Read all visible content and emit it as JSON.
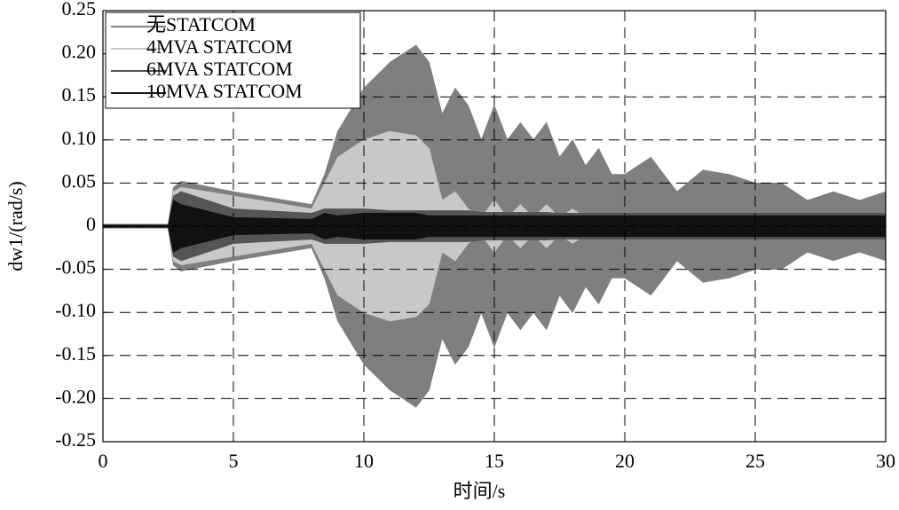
{
  "chart_data": {
    "type": "band",
    "xlabel": "时间/s",
    "ylabel": "dw1/(rad/s)",
    "x": [
      0,
      2.5,
      2.7,
      3,
      5,
      8,
      8.5,
      9,
      10,
      11,
      12,
      12.5,
      13,
      13.5,
      14,
      14.5,
      15,
      15.5,
      16,
      16.5,
      17,
      17.5,
      18,
      18.5,
      19,
      19.5,
      20,
      21,
      22,
      23,
      24,
      25,
      26,
      27,
      28,
      29,
      30
    ],
    "series": [
      {
        "name": "无STATCOM",
        "color": "#7f7f7f",
        "values": [
          0.002,
          0.002,
          0.045,
          0.052,
          0.04,
          0.025,
          0.06,
          0.11,
          0.16,
          0.19,
          0.21,
          0.19,
          0.13,
          0.16,
          0.14,
          0.1,
          0.14,
          0.1,
          0.12,
          0.1,
          0.12,
          0.08,
          0.1,
          0.07,
          0.09,
          0.06,
          0.06,
          0.08,
          0.04,
          0.065,
          0.06,
          0.05,
          0.05,
          0.03,
          0.04,
          0.03,
          0.04
        ],
        "lower": [
          -0.002,
          -0.002,
          -0.045,
          -0.052,
          -0.04,
          -0.025,
          -0.06,
          -0.11,
          -0.16,
          -0.19,
          -0.21,
          -0.19,
          -0.13,
          -0.16,
          -0.14,
          -0.1,
          -0.14,
          -0.1,
          -0.12,
          -0.1,
          -0.12,
          -0.08,
          -0.1,
          -0.07,
          -0.09,
          -0.06,
          -0.06,
          -0.08,
          -0.04,
          -0.065,
          -0.06,
          -0.05,
          -0.05,
          -0.03,
          -0.04,
          -0.03,
          -0.04
        ]
      },
      {
        "name": "4MVA STATCOM",
        "color": "#c8c8c8",
        "values": [
          0.002,
          0.002,
          0.04,
          0.045,
          0.035,
          0.02,
          0.05,
          0.08,
          0.1,
          0.11,
          0.105,
          0.09,
          0.03,
          0.04,
          0.02,
          0.01,
          0.03,
          0.01,
          0.025,
          0.01,
          0.025,
          0.01,
          0.02,
          0.01,
          0.015,
          0.012,
          0.012,
          0.012,
          0.012,
          0.012,
          0.012,
          0.012,
          0.012,
          0.012,
          0.012,
          0.012,
          0.012
        ],
        "lower": [
          -0.002,
          -0.002,
          -0.04,
          -0.045,
          -0.035,
          -0.02,
          -0.05,
          -0.08,
          -0.1,
          -0.11,
          -0.105,
          -0.09,
          -0.03,
          -0.04,
          -0.02,
          -0.01,
          -0.03,
          -0.01,
          -0.025,
          -0.01,
          -0.025,
          -0.01,
          -0.02,
          -0.01,
          -0.015,
          -0.012,
          -0.012,
          -0.012,
          -0.012,
          -0.012,
          -0.012,
          -0.012,
          -0.012,
          -0.012,
          -0.012,
          -0.012,
          -0.012
        ]
      },
      {
        "name": "6MVA STATCOM",
        "color": "#555555",
        "values": [
          0.002,
          0.002,
          0.035,
          0.04,
          0.02,
          0.015,
          0.02,
          0.02,
          0.02,
          0.018,
          0.018,
          0.018,
          0.018,
          0.018,
          0.018,
          0.016,
          0.016,
          0.016,
          0.016,
          0.016,
          0.016,
          0.015,
          0.015,
          0.015,
          0.015,
          0.015,
          0.015,
          0.015,
          0.015,
          0.015,
          0.015,
          0.015,
          0.015,
          0.015,
          0.015,
          0.015,
          0.015
        ],
        "lower": [
          -0.002,
          -0.002,
          -0.035,
          -0.04,
          -0.02,
          -0.015,
          -0.02,
          -0.02,
          -0.02,
          -0.018,
          -0.018,
          -0.018,
          -0.018,
          -0.018,
          -0.018,
          -0.016,
          -0.016,
          -0.016,
          -0.016,
          -0.016,
          -0.016,
          -0.015,
          -0.015,
          -0.015,
          -0.015,
          -0.015,
          -0.015,
          -0.015,
          -0.015,
          -0.015,
          -0.015,
          -0.015,
          -0.015,
          -0.015,
          -0.015,
          -0.015,
          -0.015
        ]
      },
      {
        "name": "10MVA STATCOM",
        "color": "#111111",
        "values": [
          0.001,
          0.001,
          0.03,
          0.025,
          0.01,
          0.008,
          0.015,
          0.012,
          0.015,
          0.015,
          0.015,
          0.012,
          0.012,
          0.012,
          0.012,
          0.012,
          0.012,
          0.012,
          0.012,
          0.012,
          0.012,
          0.012,
          0.012,
          0.012,
          0.012,
          0.012,
          0.012,
          0.012,
          0.012,
          0.012,
          0.012,
          0.012,
          0.012,
          0.012,
          0.012,
          0.012,
          0.012
        ],
        "lower": [
          -0.001,
          -0.001,
          -0.03,
          -0.025,
          -0.01,
          -0.008,
          -0.015,
          -0.012,
          -0.015,
          -0.015,
          -0.015,
          -0.012,
          -0.012,
          -0.012,
          -0.012,
          -0.012,
          -0.012,
          -0.012,
          -0.012,
          -0.012,
          -0.012,
          -0.012,
          -0.012,
          -0.012,
          -0.012,
          -0.012,
          -0.012,
          -0.012,
          -0.012,
          -0.012,
          -0.012,
          -0.012,
          -0.012,
          -0.012,
          -0.012,
          -0.012,
          -0.012
        ]
      }
    ],
    "xlim": [
      0,
      30
    ],
    "xticks": [
      0,
      5,
      10,
      15,
      20,
      25,
      30
    ],
    "ylim": [
      -0.25,
      0.25
    ],
    "yticks": [
      0.25,
      {
        "value": 0.2,
        "label": "0.20"
      },
      0.15,
      {
        "value": 0.1,
        "label": "0.10"
      },
      0.05,
      0,
      -0.05,
      {
        "value": -0.1,
        "label": "-0.10"
      },
      -0.15,
      {
        "value": -0.2,
        "label": "-0.20"
      },
      -0.25
    ],
    "grid": true,
    "legend": "upper-left"
  }
}
